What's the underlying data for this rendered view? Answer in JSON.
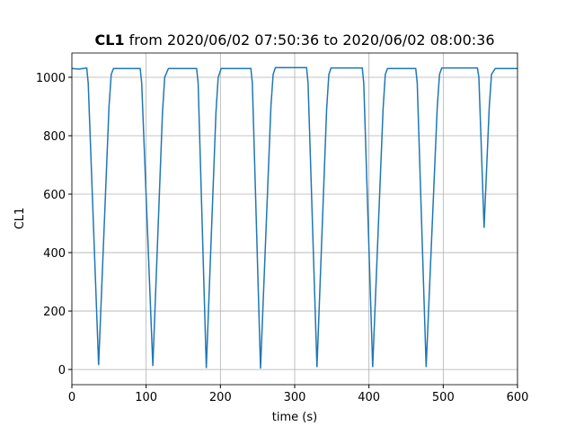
{
  "chart_data": {
    "type": "line",
    "title": {
      "bold": "CL1",
      "text": "from 2020/06/02 07:50:36 to 2020/06/02 08:00:36"
    },
    "xlabel": "time (s)",
    "ylabel": "CL1",
    "x": [
      0,
      10,
      20,
      22,
      36,
      50,
      53,
      56,
      92,
      94,
      109,
      122,
      125,
      130,
      168,
      170,
      181,
      194,
      197,
      201,
      241,
      243,
      254,
      268,
      271,
      274,
      316,
      318,
      330,
      343,
      346,
      349,
      391,
      393,
      405,
      419,
      422,
      425,
      463,
      465,
      477,
      492,
      495,
      498,
      546,
      548,
      555,
      562,
      565,
      570,
      600
    ],
    "values": [
      1030,
      1028,
      1032,
      980,
      15,
      900,
      1010,
      1030,
      1030,
      980,
      12,
      880,
      1000,
      1030,
      1030,
      980,
      5,
      880,
      1000,
      1030,
      1030,
      980,
      3,
      900,
      1010,
      1033,
      1033,
      980,
      8,
      890,
      1010,
      1032,
      1032,
      980,
      8,
      890,
      1010,
      1030,
      1030,
      980,
      8,
      900,
      1010,
      1032,
      1032,
      1000,
      485,
      900,
      1010,
      1030,
      1030
    ],
    "color": "#1f77b4",
    "xlim": [
      0,
      600
    ],
    "ylim": [
      -52,
      1083
    ],
    "xticks": [
      0,
      100,
      200,
      300,
      400,
      500,
      600
    ],
    "yticks": [
      0,
      200,
      400,
      600,
      800,
      1000
    ],
    "grid": true
  }
}
